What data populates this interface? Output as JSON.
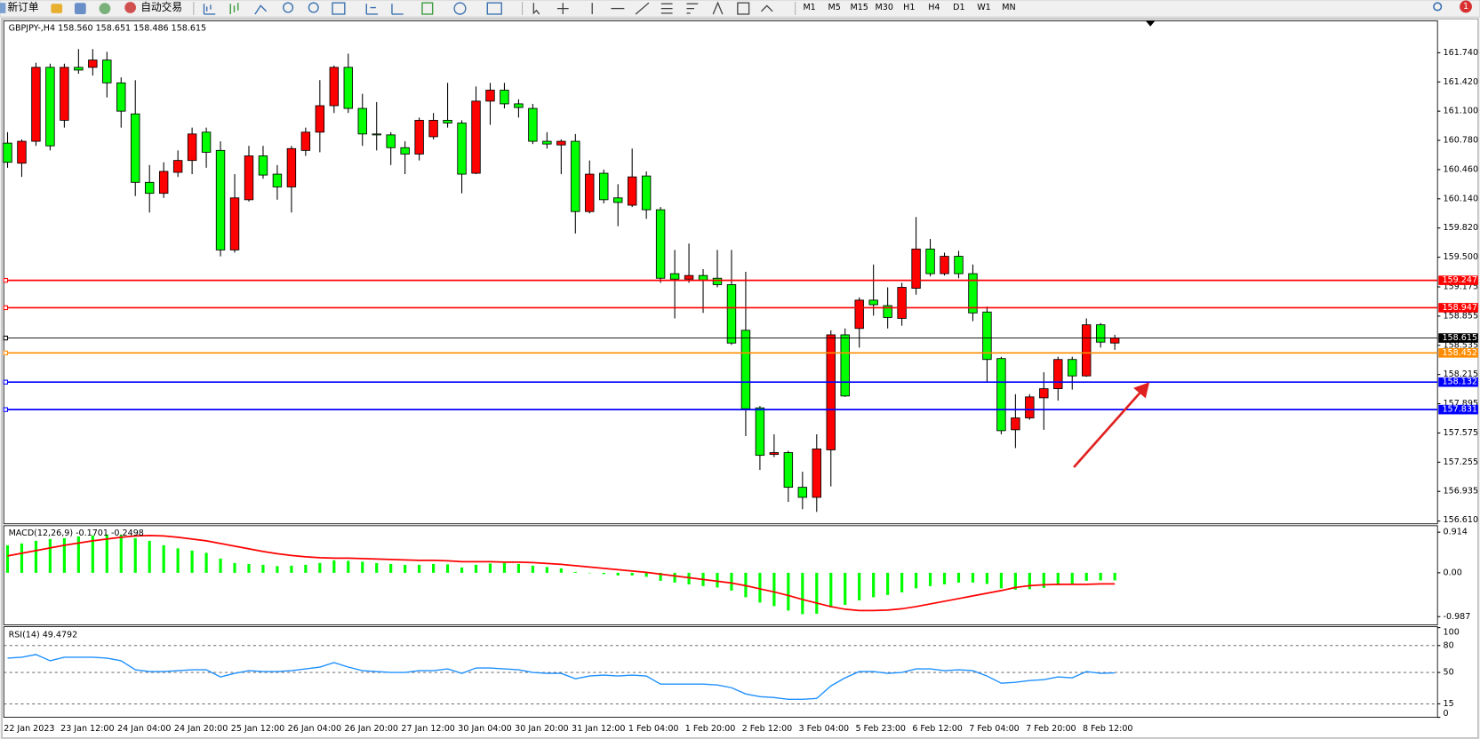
{
  "toolbar": {
    "new_order": "新订单",
    "auto_trading": "自动交易",
    "timeframes": [
      "M1",
      "M5",
      "M15",
      "M30",
      "H1",
      "H4",
      "D1",
      "W1",
      "MN"
    ],
    "badge": "1"
  },
  "chart_data": [
    {
      "type": "candlestick",
      "title": "GBPJPY-,H4 158.560 158.651 158.486 158.615",
      "categories": [
        "22 Jan 2023",
        null,
        null,
        null,
        "23 Jan 12:00",
        null,
        null,
        null,
        "24 Jan 04:00",
        null,
        null,
        null,
        "24 Jan 20:00",
        null,
        null,
        null,
        "25 Jan 12:00",
        null,
        null,
        null,
        "26 Jan 04:00",
        null,
        null,
        null,
        "26 Jan 20:00",
        null,
        null,
        null,
        "27 Jan 12:00",
        null,
        null,
        null,
        "30 Jan 04:00",
        null,
        null,
        null,
        "30 Jan 20:00",
        null,
        null,
        null,
        "31 Jan 12:00",
        null,
        null,
        null,
        "1 Feb 04:00",
        null,
        null,
        null,
        "1 Feb 20:00",
        null,
        null,
        null,
        "2 Feb 12:00",
        null,
        null,
        null,
        "3 Feb 04:00",
        null,
        null,
        null,
        "5 Feb 23:00",
        null,
        null,
        null,
        "6 Feb 12:00",
        null,
        null,
        null,
        "7 Feb 04:00",
        null,
        null,
        null,
        "7 Feb 20:00",
        null,
        null,
        null,
        "8 Feb 12:00",
        null,
        null
      ],
      "open": [
        160.75,
        160.53,
        160.77,
        161.58,
        161.0,
        161.58,
        161.58,
        161.66,
        161.41,
        161.07,
        160.32,
        160.2,
        160.43,
        160.56,
        160.87,
        160.67,
        159.58,
        160.13,
        160.61,
        160.41,
        160.27,
        160.67,
        160.87,
        161.16,
        161.58,
        161.13,
        160.85,
        160.84,
        160.7,
        160.63,
        160.82,
        161.0,
        160.97,
        160.42,
        161.21,
        161.33,
        161.18,
        161.13,
        160.77,
        160.73,
        160.77,
        160.0,
        160.42,
        160.15,
        160.07,
        160.39,
        160.02,
        159.32,
        159.26,
        159.3,
        159.27,
        159.2,
        158.7,
        157.85,
        157.34,
        157.36,
        156.98,
        156.87,
        157.39,
        158.65,
        158.72,
        159.03,
        158.97,
        158.83,
        159.16,
        159.59,
        159.32,
        159.51,
        159.32,
        158.9,
        158.39,
        157.61,
        157.74,
        157.96,
        158.06,
        158.38,
        158.2,
        158.76,
        158.56
      ],
      "high": [
        160.87,
        160.79,
        161.63,
        161.62,
        161.62,
        161.78,
        161.78,
        161.75,
        161.47,
        161.44,
        160.51,
        160.54,
        160.67,
        160.92,
        160.92,
        160.77,
        160.41,
        160.72,
        160.72,
        160.51,
        160.72,
        160.92,
        161.44,
        161.6,
        161.73,
        161.29,
        161.2,
        160.87,
        160.77,
        161.03,
        161.08,
        161.41,
        161.0,
        161.37,
        161.41,
        161.41,
        161.23,
        161.18,
        160.87,
        160.79,
        160.85,
        160.56,
        160.46,
        160.3,
        160.69,
        160.44,
        160.05,
        159.58,
        159.65,
        159.37,
        159.58,
        159.58,
        159.34,
        157.87,
        157.56,
        157.38,
        157.15,
        157.56,
        158.7,
        158.72,
        159.06,
        159.42,
        159.17,
        159.22,
        159.94,
        159.7,
        159.55,
        159.57,
        159.42,
        158.96,
        158.41,
        158.0,
        158.0,
        158.24,
        158.41,
        158.41,
        158.83,
        158.78,
        158.651
      ],
      "low": [
        160.48,
        160.38,
        160.72,
        160.67,
        160.92,
        161.51,
        161.49,
        161.25,
        160.92,
        160.17,
        159.99,
        160.15,
        160.38,
        160.41,
        160.48,
        159.51,
        159.55,
        160.11,
        160.36,
        160.13,
        159.99,
        160.61,
        160.65,
        161.08,
        161.08,
        160.72,
        160.67,
        160.51,
        160.41,
        160.56,
        160.79,
        160.92,
        160.2,
        160.41,
        160.95,
        161.13,
        161.03,
        160.74,
        160.69,
        160.41,
        159.76,
        159.98,
        160.09,
        159.84,
        160.05,
        159.92,
        159.22,
        158.83,
        159.22,
        158.89,
        159.17,
        158.54,
        157.54,
        157.17,
        157.31,
        156.82,
        156.74,
        156.71,
        156.99,
        157.97,
        158.51,
        158.86,
        158.72,
        158.75,
        159.09,
        159.29,
        159.3,
        159.27,
        158.8,
        158.13,
        157.56,
        157.41,
        157.72,
        157.61,
        157.93,
        158.05,
        158.19,
        158.51,
        158.486
      ],
      "close": [
        160.54,
        160.77,
        161.58,
        160.72,
        161.58,
        161.55,
        161.66,
        161.41,
        161.1,
        160.32,
        160.2,
        160.44,
        160.56,
        160.85,
        160.65,
        159.58,
        160.15,
        160.61,
        160.4,
        160.27,
        160.69,
        160.87,
        161.16,
        161.58,
        161.13,
        160.85,
        160.84,
        160.7,
        160.63,
        161.0,
        161.0,
        160.97,
        160.41,
        161.21,
        161.33,
        161.18,
        161.14,
        160.77,
        160.74,
        160.77,
        160.0,
        160.41,
        160.13,
        160.1,
        160.38,
        160.02,
        159.27,
        159.26,
        159.3,
        159.25,
        159.2,
        158.56,
        157.84,
        157.33,
        157.36,
        156.98,
        156.87,
        157.4,
        158.65,
        157.98,
        159.03,
        158.98,
        158.84,
        159.17,
        159.59,
        159.32,
        159.51,
        159.32,
        158.89,
        158.38,
        157.6,
        157.74,
        157.97,
        158.06,
        158.38,
        158.2,
        158.76,
        158.57,
        158.615
      ],
      "up_color": "#ff0000",
      "down_color": "#00ff00",
      "ylim": [
        156.58,
        162.09
      ],
      "yticks": [
        {
          "value": 161.74,
          "label": "161.740"
        },
        {
          "value": 161.42,
          "label": "161.420"
        },
        {
          "value": 161.1,
          "label": "161.100"
        },
        {
          "value": 160.78,
          "label": "160.780"
        },
        {
          "value": 160.46,
          "label": "160.460"
        },
        {
          "value": 160.14,
          "label": "160.140"
        },
        {
          "value": 159.82,
          "label": "159.820"
        },
        {
          "value": 159.5,
          "label": "159.500"
        },
        159.175,
        158.855,
        158.535,
        158.215,
        157.895,
        157.575,
        157.255,
        156.935,
        {
          "value": 156.61,
          "label": "156.610"
        }
      ],
      "price_lines": [
        {
          "value": 159.247,
          "color": "#ff0000"
        },
        {
          "value": 158.947,
          "color": "#ff0000"
        },
        {
          "value": 158.615,
          "color": "#000000"
        },
        {
          "value": 158.452,
          "color": "#ff8c00"
        },
        {
          "value": 158.132,
          "color": "#0000ff"
        },
        {
          "value": 157.831,
          "color": "#0000ff"
        }
      ]
    },
    {
      "type": "macd",
      "title": "MACD(12,26,9) -0.1701 -0.2498",
      "values": [
        0.62,
        0.66,
        0.72,
        0.76,
        0.78,
        0.82,
        0.84,
        0.86,
        0.85,
        0.78,
        0.72,
        0.62,
        0.55,
        0.5,
        0.45,
        0.32,
        0.22,
        0.2,
        0.18,
        0.15,
        0.16,
        0.18,
        0.22,
        0.28,
        0.27,
        0.25,
        0.22,
        0.2,
        0.18,
        0.18,
        0.2,
        0.19,
        0.12,
        0.18,
        0.21,
        0.22,
        0.2,
        0.16,
        0.13,
        0.1,
        0.02,
        -0.01,
        -0.03,
        -0.06,
        -0.06,
        -0.09,
        -0.18,
        -0.22,
        -0.26,
        -0.3,
        -0.33,
        -0.4,
        -0.55,
        -0.67,
        -0.75,
        -0.85,
        -0.93,
        -0.92,
        -0.78,
        -0.72,
        -0.62,
        -0.55,
        -0.5,
        -0.44,
        -0.35,
        -0.3,
        -0.26,
        -0.22,
        -0.22,
        -0.25,
        -0.35,
        -0.38,
        -0.37,
        -0.34,
        -0.28,
        -0.26,
        -0.18,
        -0.17,
        -0.1701
      ],
      "signal": [
        0.38,
        0.44,
        0.5,
        0.56,
        0.62,
        0.67,
        0.72,
        0.76,
        0.8,
        0.83,
        0.84,
        0.83,
        0.8,
        0.76,
        0.72,
        0.66,
        0.6,
        0.54,
        0.48,
        0.43,
        0.39,
        0.36,
        0.34,
        0.33,
        0.33,
        0.32,
        0.31,
        0.3,
        0.29,
        0.28,
        0.28,
        0.27,
        0.25,
        0.25,
        0.25,
        0.24,
        0.24,
        0.23,
        0.21,
        0.19,
        0.16,
        0.13,
        0.1,
        0.07,
        0.04,
        0.01,
        -0.03,
        -0.07,
        -0.11,
        -0.15,
        -0.19,
        -0.23,
        -0.29,
        -0.36,
        -0.43,
        -0.51,
        -0.6,
        -0.68,
        -0.76,
        -0.82,
        -0.85,
        -0.85,
        -0.84,
        -0.81,
        -0.76,
        -0.7,
        -0.64,
        -0.58,
        -0.52,
        -0.46,
        -0.4,
        -0.33,
        -0.29,
        -0.27,
        -0.26,
        -0.26,
        -0.26,
        -0.25,
        -0.2498
      ],
      "color": "#00ff00",
      "signal_color": "#ff0000",
      "ylim": [
        -1.17,
        1.06
      ],
      "yticks": [
        0.914,
        {
          "value": 0,
          "label": "0.00"
        },
        -0.987
      ]
    },
    {
      "type": "rsi",
      "title": "RSI(14) 49.4792",
      "values": [
        66,
        67,
        70,
        63,
        67,
        67,
        67,
        66,
        63,
        53,
        51,
        51,
        52,
        53,
        53,
        45,
        49,
        52,
        51,
        51,
        52,
        54,
        56,
        61,
        56,
        52,
        51,
        50,
        50,
        52,
        52,
        54,
        49,
        55,
        55,
        54,
        53,
        50,
        49,
        49,
        43,
        46,
        47,
        46,
        47,
        46,
        37,
        37,
        37,
        37,
        36,
        33,
        26,
        23,
        22,
        20,
        20,
        21,
        35,
        44,
        51,
        51,
        49,
        50,
        54,
        54,
        52,
        53,
        52,
        46,
        38,
        39,
        41,
        42,
        45,
        44,
        51,
        49,
        49.4792
      ],
      "color": "#1e90ff",
      "ylim": [
        0,
        100
      ],
      "yticks": [
        100,
        80,
        50,
        15,
        0
      ],
      "levels": [
        80,
        50,
        15
      ]
    }
  ]
}
